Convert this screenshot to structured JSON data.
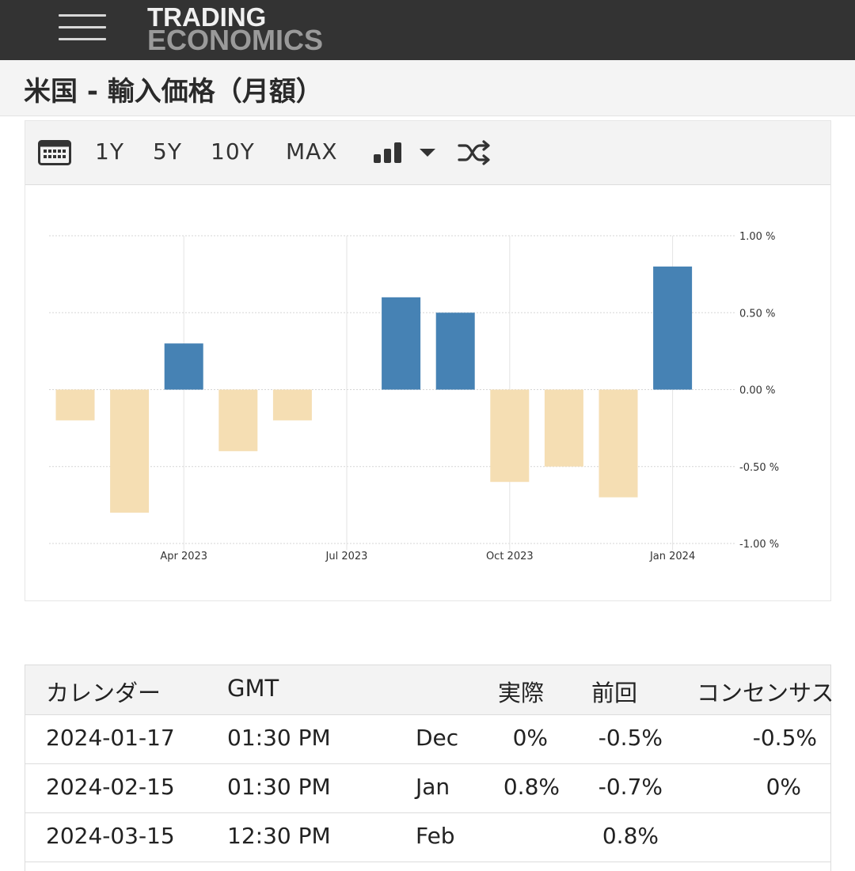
{
  "header": {
    "logo_line1": "TRADING",
    "logo_line2": "ECONOMICS"
  },
  "page_title": "米国 - 輸入価格（月額）",
  "toolbar": {
    "calendar_icon": "calendar-icon",
    "ranges": [
      "1Y",
      "5Y",
      "10Y",
      "MAX"
    ],
    "chart_type_icon": "bar-chart-icon",
    "dropdown_icon": "caret-down-icon",
    "compare_icon": "shuffle-icon"
  },
  "chart_data": {
    "type": "bar",
    "categories": [
      "Feb 2023",
      "Mar 2023",
      "Apr 2023",
      "May 2023",
      "Jun 2023",
      "Jul 2023",
      "Aug 2023",
      "Sep 2023",
      "Oct 2023",
      "Nov 2023",
      "Dec 2023",
      "Jan 2024"
    ],
    "values": [
      -0.2,
      -0.8,
      0.3,
      -0.4,
      -0.2,
      0.0,
      0.6,
      0.5,
      -0.6,
      -0.5,
      -0.7,
      0.8
    ],
    "x_tick_labels": [
      "Apr 2023",
      "Jul 2023",
      "Oct 2023",
      "Jan 2024"
    ],
    "y_tick_labels": [
      "1.00 %",
      "0.50 %",
      "0.00 %",
      "-0.50 %",
      "-1.00 %"
    ],
    "y_ticks": [
      1.0,
      0.5,
      0.0,
      -0.5,
      -1.0
    ],
    "ylim": [
      -1.0,
      1.0
    ],
    "grid": true,
    "positive_color": "#4682b4",
    "negative_color": "#f5deb3"
  },
  "calendar": {
    "headers": [
      "カレンダー",
      "GMT",
      "",
      "実際",
      "前回",
      "コンセンサス"
    ],
    "rows": [
      {
        "date": "2024-01-17",
        "time": "01:30 PM",
        "period": "Dec",
        "actual": "0%",
        "previous": "-0.5%",
        "consensus": "-0.5%"
      },
      {
        "date": "2024-02-15",
        "time": "01:30 PM",
        "period": "Jan",
        "actual": "0.8%",
        "previous": "-0.7%",
        "consensus": "0%"
      },
      {
        "date": "2024-03-15",
        "time": "12:30 PM",
        "period": "Feb",
        "actual": "",
        "previous": "0.8%",
        "consensus": ""
      }
    ]
  }
}
